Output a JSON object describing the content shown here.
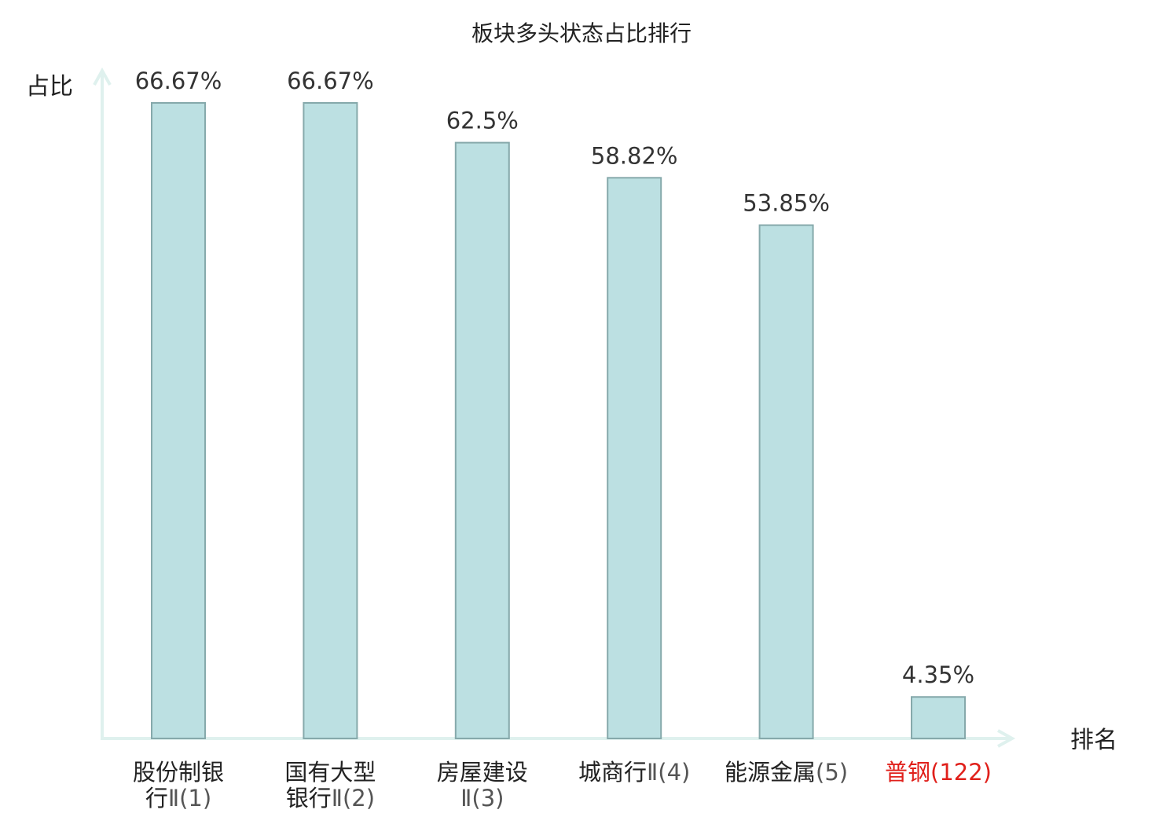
{
  "chart_data": {
    "type": "bar",
    "title": "板块多头状态占比排行",
    "ylabel": "占比",
    "xlabel": "排名",
    "ylim": [
      0,
      70
    ],
    "grid": false,
    "categories": [
      {
        "lines": [
          {
            "name": "股份制银",
            "rank": ""
          },
          {
            "name": "行",
            "rank": "Ⅱ(1)"
          }
        ],
        "highlight": false
      },
      {
        "lines": [
          {
            "name": "国有大型",
            "rank": ""
          },
          {
            "name": "银行",
            "rank": "Ⅱ(2)"
          }
        ],
        "highlight": false
      },
      {
        "lines": [
          {
            "name": "房屋建设",
            "rank": ""
          },
          {
            "name": "",
            "rank": "Ⅱ(3)"
          }
        ],
        "highlight": false
      },
      {
        "lines": [
          {
            "name": "城商行",
            "rank": "Ⅱ(4)"
          }
        ],
        "highlight": false
      },
      {
        "lines": [
          {
            "name": "能源金属",
            "rank": "(5)"
          }
        ],
        "highlight": false
      },
      {
        "lines": [
          {
            "name": "普钢",
            "rank": "(122)"
          }
        ],
        "highlight": true
      }
    ],
    "values": [
      66.67,
      66.67,
      62.5,
      58.82,
      53.85,
      4.35
    ],
    "value_labels": [
      "66.67%",
      "66.67%",
      "62.5%",
      "58.82%",
      "53.85%",
      "4.35%"
    ],
    "colors": {
      "bar_fill": "#bce0e2",
      "bar_stroke": "#86a9ab",
      "axis": "#dff1ee",
      "label_text": "#222222",
      "rank_text": "#555555",
      "highlight": "#e0201b"
    }
  }
}
